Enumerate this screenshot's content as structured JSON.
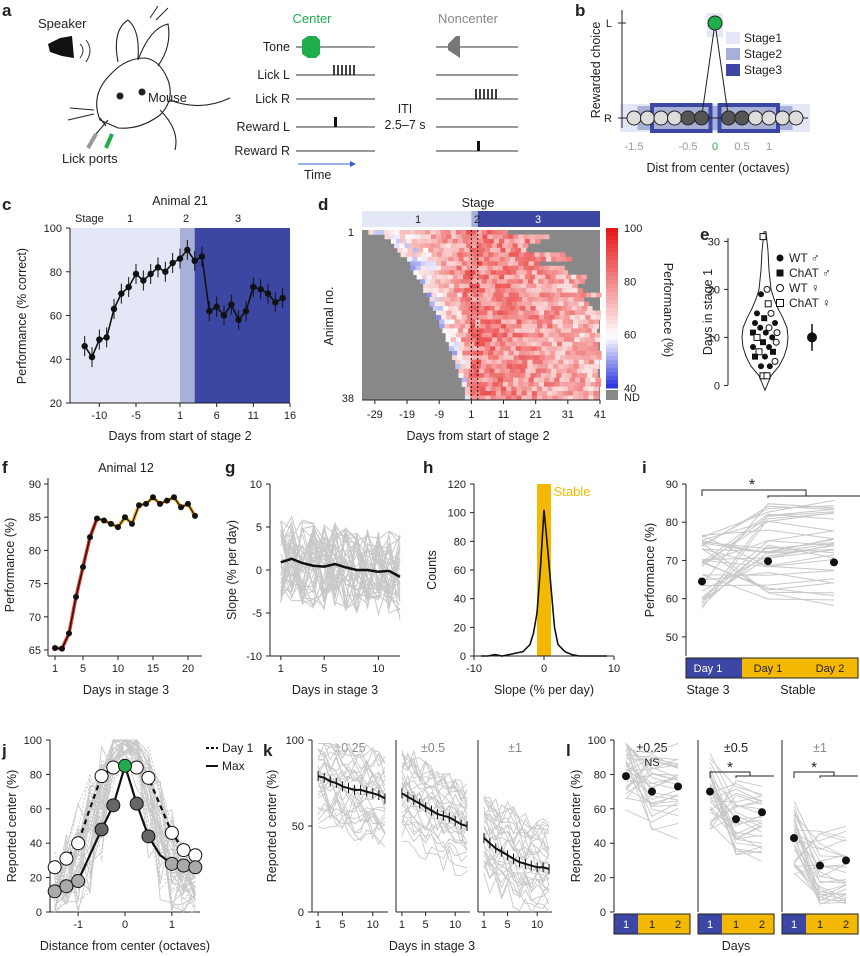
{
  "figure": {
    "panel_labels": [
      "a",
      "b",
      "c",
      "d",
      "e",
      "f",
      "g",
      "h",
      "i",
      "j",
      "k",
      "l"
    ]
  },
  "panel_a": {
    "speaker": "Speaker",
    "mouse": "Mouse",
    "lick_ports": "Lick ports",
    "center": "Center",
    "noncenter": "Noncenter",
    "rows": [
      "Tone",
      "Lick L",
      "Lick R",
      "Reward L",
      "Reward R"
    ],
    "iti": "ITI",
    "iti_range": "2.5–7 s",
    "time": "Time",
    "colors": {
      "center": "#1fae4b",
      "noncenter": "#808080"
    }
  },
  "chart_data": [
    {
      "panel": "b",
      "type": "scatter",
      "ylabel": "Rewarded choice",
      "yticks": [
        "L",
        "R"
      ],
      "xlabel": "Dist from center (octaves)",
      "xticks": [
        "-1.5",
        "-0.5",
        "0",
        "0.5",
        "1"
      ],
      "legend": [
        "Stage1",
        "Stage2",
        "Stage3"
      ],
      "legend_colors": [
        "#e4e7f5",
        "#a9b0d8",
        "#3b47a3"
      ],
      "x": [
        -1.5,
        -1.25,
        -1,
        -0.75,
        -0.5,
        -0.25,
        0,
        0.25,
        0.5,
        0.75,
        1,
        1.25,
        1.5
      ],
      "center_color": "#1fae4b"
    },
    {
      "panel": "c",
      "type": "line",
      "title": "Animal 21",
      "stage_header": "Stage",
      "stage_names": [
        "1",
        "2",
        "3"
      ],
      "xlabel": "Days from start of stage 2",
      "ylabel": "Performance (% correct)",
      "xlim": [
        -14,
        16
      ],
      "ylim": [
        20,
        100
      ],
      "xticks": [
        "-10",
        "-5",
        "1",
        "6",
        "11",
        "16"
      ],
      "yticks": [
        "20",
        "40",
        "60",
        "80",
        "100"
      ],
      "x": [
        -12,
        -11,
        -10,
        -9,
        -8,
        -7,
        -6,
        -5,
        -4,
        -3,
        -2,
        -1,
        0,
        1,
        2,
        3,
        4,
        5,
        6,
        7,
        8,
        9,
        10,
        11,
        12,
        13,
        14,
        15
      ],
      "values": [
        46,
        41,
        49,
        50,
        63,
        70,
        73,
        79,
        76,
        79,
        82,
        80,
        84,
        86,
        90,
        85,
        87,
        62,
        64,
        60,
        65,
        58,
        62,
        73,
        72,
        70,
        66,
        68
      ],
      "stage_bounds": [
        -14,
        1,
        3,
        16
      ]
    },
    {
      "panel": "d",
      "type": "heatmap",
      "title": "Stage",
      "stage_names": [
        "1",
        "2",
        "3"
      ],
      "xlabel": "Days from start of stage 2",
      "ylabel": "Animal no.",
      "xticks": [
        "-29",
        "-19",
        "-9",
        "1",
        "11",
        "21",
        "31",
        "41"
      ],
      "yticks": [
        "1",
        "38"
      ],
      "colorbar_label": "Performance (%)",
      "colorbar_ticks": [
        "100",
        "80",
        "60",
        "40",
        "ND"
      ]
    },
    {
      "panel": "e",
      "type": "scatter",
      "ylabel": "Days in stage 1",
      "yticks": [
        "0",
        "10",
        "20",
        "30"
      ],
      "ylim": [
        -2,
        33
      ],
      "legend": [
        "WT ♂",
        "ChAT ♂",
        "WT ♀",
        "ChAT ♀"
      ],
      "summary": {
        "mean": 10,
        "sd": 2.8
      },
      "points": [
        {
          "x": -0.05,
          "y": 31,
          "g": 3
        },
        {
          "x": 0.05,
          "y": 20,
          "g": 2
        },
        {
          "x": -0.1,
          "y": 19,
          "g": 0
        },
        {
          "x": 0.08,
          "y": 17,
          "g": 3
        },
        {
          "x": -0.2,
          "y": 15,
          "g": 0
        },
        {
          "x": 0.15,
          "y": 15,
          "g": 2
        },
        {
          "x": -0.02,
          "y": 14,
          "g": 1
        },
        {
          "x": -0.25,
          "y": 13,
          "g": 0
        },
        {
          "x": 0.25,
          "y": 13,
          "g": 0
        },
        {
          "x": 0.1,
          "y": 12,
          "g": 2
        },
        {
          "x": -0.12,
          "y": 12,
          "g": 0
        },
        {
          "x": -0.3,
          "y": 11,
          "g": 1
        },
        {
          "x": 0.3,
          "y": 11,
          "g": 2
        },
        {
          "x": 0.02,
          "y": 11,
          "g": 0
        },
        {
          "x": -0.2,
          "y": 10,
          "g": 3
        },
        {
          "x": 0.18,
          "y": 10,
          "g": 0
        },
        {
          "x": -0.05,
          "y": 9,
          "g": 1
        },
        {
          "x": 0.28,
          "y": 9,
          "g": 2
        },
        {
          "x": -0.3,
          "y": 8,
          "g": 0
        },
        {
          "x": 0.1,
          "y": 8,
          "g": 0
        },
        {
          "x": -0.15,
          "y": 7,
          "g": 3
        },
        {
          "x": 0.2,
          "y": 7,
          "g": 1
        },
        {
          "x": 0.0,
          "y": 6,
          "g": 0
        },
        {
          "x": -0.25,
          "y": 6,
          "g": 1
        },
        {
          "x": 0.25,
          "y": 5,
          "g": 2
        },
        {
          "x": -0.1,
          "y": 4,
          "g": 0
        },
        {
          "x": 0.12,
          "y": 4,
          "g": 0
        },
        {
          "x": -0.05,
          "y": 2,
          "g": 3
        },
        {
          "x": 0.05,
          "y": 2,
          "g": 3
        }
      ]
    },
    {
      "panel": "f",
      "type": "line",
      "title": "Animal 12",
      "xlabel": "Days in stage 3",
      "ylabel": "Performance (%)",
      "xlim": [
        0,
        22
      ],
      "ylim": [
        65,
        90
      ],
      "xticks": [
        "1",
        "5",
        "10",
        "15",
        "20"
      ],
      "yticks": [
        "65",
        "70",
        "75",
        "80",
        "85",
        "90"
      ],
      "x": [
        1,
        2,
        3,
        4,
        5,
        6,
        7,
        8,
        9,
        10,
        11,
        12,
        13,
        14,
        15,
        16,
        17,
        18,
        19,
        20,
        21
      ],
      "values": [
        65.3,
        65.2,
        67.5,
        73,
        77.5,
        82,
        84.8,
        84.5,
        84,
        83.5,
        85,
        84,
        86.8,
        87,
        88,
        87,
        87.5,
        88,
        86.5,
        87,
        85.2
      ],
      "colors": [
        "#d93a2b",
        "#e8a91d"
      ]
    },
    {
      "panel": "g",
      "type": "line",
      "xlabel": "Days in stage 3",
      "ylabel": "Slope (% per day)",
      "xlim": [
        0,
        12
      ],
      "ylim": [
        -10,
        10
      ],
      "xticks": [
        "1",
        "5",
        "10"
      ],
      "yticks": [
        "-10",
        "-5",
        "0",
        "5",
        "10"
      ],
      "x": [
        1,
        2,
        3,
        4,
        5,
        6,
        7,
        8,
        9,
        10,
        11,
        12
      ],
      "mean": [
        0.9,
        1.3,
        0.8,
        0.5,
        0.4,
        0.7,
        0.3,
        0.0,
        0.0,
        -0.2,
        -0.1,
        -0.8
      ]
    },
    {
      "panel": "h",
      "type": "line",
      "xlabel": "Slope (% per day)",
      "ylabel": "Counts",
      "xlim": [
        -10,
        10
      ],
      "ylim": [
        0,
        120
      ],
      "xticks": [
        "-10",
        "0",
        "10"
      ],
      "yticks": [
        "0",
        "20",
        "40",
        "60",
        "80",
        "100",
        "120"
      ],
      "band_label": "Stable",
      "band": [
        -1,
        1
      ],
      "band_color": "#f5b800",
      "x": [
        -9,
        -8,
        -7,
        -6,
        -5,
        -4,
        -3,
        -2,
        -1.5,
        -1,
        -0.5,
        0,
        0.5,
        1,
        1.5,
        2,
        3,
        4,
        5,
        6,
        7,
        8,
        9
      ],
      "values": [
        0,
        0,
        1,
        0,
        1,
        2,
        3,
        8,
        16,
        30,
        62,
        102,
        76,
        48,
        20,
        8,
        3,
        1,
        0,
        0,
        0,
        0,
        0
      ]
    },
    {
      "panel": "i",
      "type": "scatter",
      "ylabel": "Performance (%)",
      "ylim": [
        45,
        90
      ],
      "yticks": [
        "50",
        "60",
        "70",
        "80",
        "90"
      ],
      "categories": [
        "Day 1",
        "Day 1",
        "Day 2"
      ],
      "groups": [
        "Stage 3",
        "Stable"
      ],
      "means": [
        64.5,
        69.8,
        69.5
      ],
      "sig": "*",
      "group_colors": [
        "#3b47a3",
        "#f5b800"
      ]
    },
    {
      "panel": "j",
      "type": "line",
      "xlabel": "Distance from center (octaves)",
      "ylabel": "Reported center (%)",
      "xlim": [
        -1.6,
        1.6
      ],
      "ylim": [
        0,
        100
      ],
      "xticks": [
        "-1",
        "0",
        "1"
      ],
      "yticks": [
        "0",
        "20",
        "40",
        "60",
        "80",
        "100"
      ],
      "legend": [
        "Day 1",
        "Max"
      ],
      "x": [
        -1.5,
        -1.25,
        -1,
        -0.75,
        -0.5,
        -0.25,
        0,
        0.25,
        0.5,
        0.75,
        1,
        1.25,
        1.5
      ],
      "series": [
        {
          "name": "Day 1",
          "values": [
            26,
            31,
            40,
            60,
            79,
            84,
            85,
            84,
            78,
            62,
            46,
            36,
            33
          ]
        },
        {
          "name": "Max",
          "values": [
            12,
            15,
            18,
            33,
            48,
            62,
            85,
            63,
            44,
            33,
            28,
            27,
            26
          ]
        }
      ]
    },
    {
      "panel": "k",
      "type": "line",
      "xlabel": "Days in stage 3",
      "ylabel": "Reported center (%)",
      "ylim": [
        0,
        100
      ],
      "yticks": [
        "0",
        "50",
        "100"
      ],
      "xticks": [
        "1",
        "5",
        "10"
      ],
      "titles": [
        "±0.25",
        "±0.5",
        "±1"
      ],
      "x": [
        1,
        2,
        3,
        4,
        5,
        6,
        7,
        8,
        9,
        10,
        11,
        12
      ],
      "series": [
        {
          "name": "±0.25",
          "values": [
            79,
            78,
            76,
            75,
            73,
            72,
            71,
            71,
            70,
            69,
            68,
            66
          ]
        },
        {
          "name": "±0.5",
          "values": [
            69,
            67,
            65,
            63,
            61,
            59,
            57,
            56,
            55,
            53,
            51,
            50
          ]
        },
        {
          "name": "±1",
          "values": [
            43,
            40,
            37,
            35,
            33,
            31,
            29,
            28,
            27,
            26,
            26,
            25
          ]
        }
      ]
    },
    {
      "panel": "l",
      "type": "scatter",
      "ylabel": "Reported center (%)",
      "xlabel": "Days",
      "ylim": [
        0,
        100
      ],
      "yticks": [
        "0",
        "20",
        "40",
        "60",
        "80",
        "100"
      ],
      "titles": [
        "±0.25",
        "±0.5",
        "±1"
      ],
      "sig_labels": [
        "NS",
        "*",
        "*"
      ],
      "day_labels": [
        "1",
        "1",
        "2"
      ],
      "series": [
        {
          "name": "±0.25",
          "values": [
            79,
            70,
            73
          ]
        },
        {
          "name": "±0.5",
          "values": [
            70,
            54,
            58
          ]
        },
        {
          "name": "±1",
          "values": [
            43,
            27,
            30
          ]
        }
      ]
    }
  ]
}
